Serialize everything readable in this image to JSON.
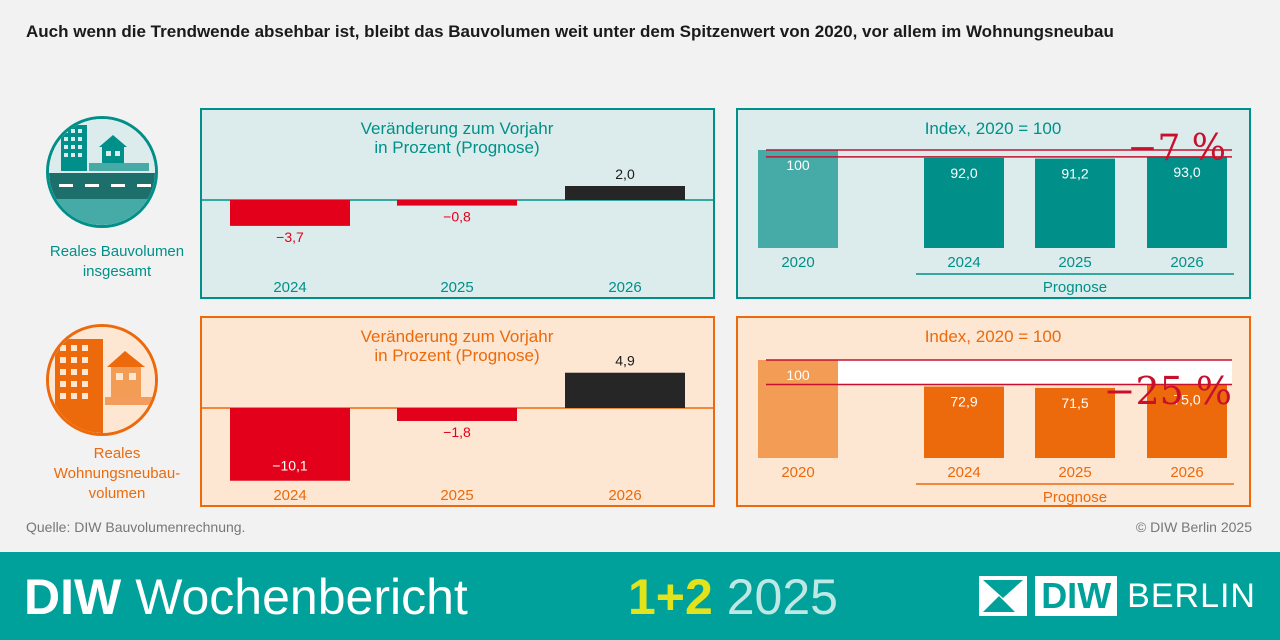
{
  "title": "Auch wenn die Trendwende absehbar ist, bleibt das Bauvolumen weit unter dem Spitzenwert von 2020, vor allem im Wohnungsneubau",
  "source": "Quelle: DIW Bauvolumenrechnung.",
  "copyright": "© DIW Berlin 2025",
  "banner": {
    "brand": "DIW",
    "publication": "Wochenbericht",
    "issue": "1+2",
    "year": "2025",
    "logo_left": "DIW",
    "logo_right": "BERLIN"
  },
  "colors": {
    "teal": "#009089",
    "teal_light": "#dcecec",
    "teal_bar_2020": "#46aaa6",
    "orange": "#ec6a0c",
    "orange_light": "#fde6d2",
    "orange_bar_2020": "#f29c56",
    "red": "#e2001a",
    "black": "#262626",
    "crimson": "#c8102e",
    "banner": "#00a19a",
    "accent_yellow": "#e2e31b"
  },
  "rows": [
    {
      "label_lines": [
        "Reales Bauvolumen",
        "insgesamt"
      ],
      "icon": "building-house-road-icon"
    },
    {
      "label_lines": [
        "Reales",
        "Wohnungsneubau-",
        "volumen"
      ],
      "icon": "apartment-house-icon"
    }
  ],
  "chart_data": [
    {
      "type": "bar",
      "title": "Veränderung zum Vorjahr\nin Prozent (Prognose)",
      "categories": [
        "2024",
        "2025",
        "2026"
      ],
      "values": [
        -3.7,
        -0.8,
        2.0
      ],
      "labels": [
        "−3,7",
        "−0,8",
        "2,0"
      ],
      "ylim": [
        -4.0,
        2.4
      ]
    },
    {
      "type": "bar",
      "title": "Index, 2020 = 100",
      "categories": [
        "2020",
        "2024",
        "2025",
        "2026"
      ],
      "values": [
        100,
        92.0,
        91.2,
        93.0
      ],
      "labels": [
        "100",
        "92,0",
        "91,2",
        "93,0"
      ],
      "ylim": [
        0,
        100
      ],
      "bracket_label": "Prognose",
      "annotation": "−7 %",
      "reference_lines": [
        100,
        93
      ]
    },
    {
      "type": "bar",
      "title": "Veränderung zum Vorjahr\nin Prozent (Prognose)",
      "categories": [
        "2024",
        "2025",
        "2026"
      ],
      "values": [
        -10.1,
        -1.8,
        4.9
      ],
      "labels": [
        "−10,1",
        "−1,8",
        "4,9"
      ],
      "ylim": [
        -10.1,
        5.0
      ]
    },
    {
      "type": "bar",
      "title": "Index, 2020 = 100",
      "categories": [
        "2020",
        "2024",
        "2025",
        "2026"
      ],
      "values": [
        100,
        72.9,
        71.5,
        75.0
      ],
      "labels": [
        "100",
        "72,9",
        "71,5",
        "75,0"
      ],
      "ylim": [
        0,
        100
      ],
      "bracket_label": "Prognose",
      "annotation": "−25 %",
      "reference_lines": [
        100,
        75
      ]
    }
  ]
}
